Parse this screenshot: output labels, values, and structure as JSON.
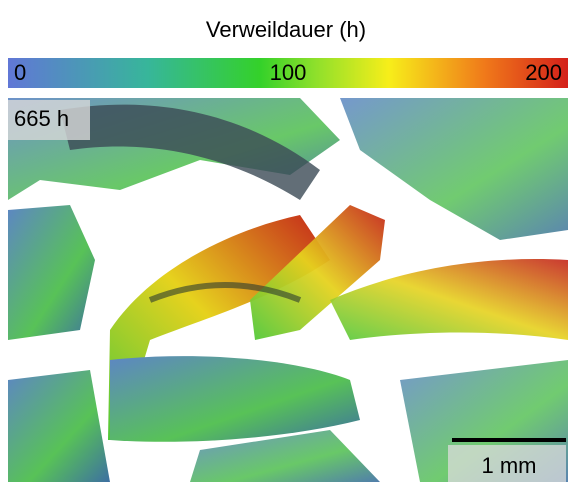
{
  "colorbar": {
    "title": "Verweildauer (h)",
    "lim": [
      0,
      200
    ],
    "ticks": [
      0,
      100,
      200
    ]
  },
  "image": {
    "time_label": "665 h",
    "scale_bar_label": "1 mm"
  }
}
